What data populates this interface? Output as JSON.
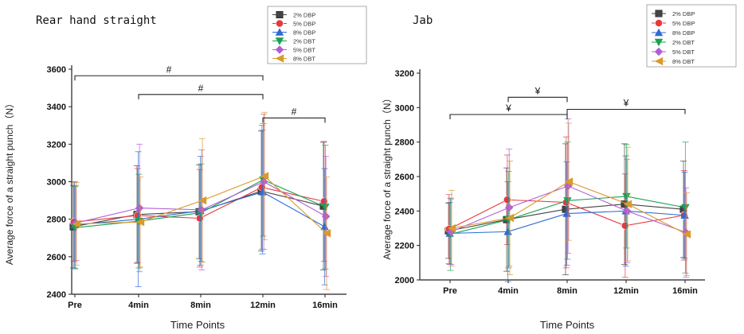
{
  "chart_data": [
    {
      "type": "line",
      "title": "Rear hand straight",
      "xlabel": "Time Points",
      "ylabel": "Average force of a straight punch（N）",
      "categories": [
        "Pre",
        "4min",
        "8min",
        "12min",
        "16min"
      ],
      "ylim": [
        2400,
        3600
      ],
      "yticks": [
        2400,
        2600,
        2800,
        3000,
        3200,
        3400,
        3600
      ],
      "series": [
        {
          "name": "2% DBP",
          "color": "#444444",
          "marker": "square",
          "values": [
            2760,
            2825,
            2840,
            2950,
            2870
          ],
          "errors": [
            220,
            260,
            250,
            320,
            340
          ]
        },
        {
          "name": "5% DBP",
          "color": "#e8383d",
          "marker": "circle",
          "values": [
            2785,
            2820,
            2805,
            2970,
            2895
          ],
          "errors": [
            210,
            250,
            260,
            330,
            320
          ]
        },
        {
          "name": "8% DBP",
          "color": "#2d6bd6",
          "marker": "triangle-up",
          "values": [
            2770,
            2800,
            2845,
            2945,
            2760
          ],
          "errors": [
            230,
            360,
            290,
            330,
            310
          ]
        },
        {
          "name": "2% DBT",
          "color": "#1aa150",
          "marker": "triangle-down",
          "values": [
            2755,
            2790,
            2835,
            3010,
            2865
          ],
          "errors": [
            220,
            250,
            260,
            300,
            330
          ]
        },
        {
          "name": "5% DBT",
          "color": "#b05ed6",
          "marker": "diamond",
          "values": [
            2780,
            2860,
            2850,
            3000,
            2815
          ],
          "errors": [
            200,
            340,
            320,
            360,
            320
          ]
        },
        {
          "name": "8% DBT",
          "color": "#d99a2b",
          "marker": "triangle-left",
          "values": [
            2775,
            2785,
            2900,
            3030,
            2725
          ],
          "errors": [
            220,
            240,
            330,
            340,
            300
          ]
        }
      ],
      "annotations": [
        {
          "label": "#",
          "from": "Pre",
          "to": "12min",
          "y": 3565
        },
        {
          "label": "#",
          "from": "4min",
          "to": "12min",
          "y": 3465
        },
        {
          "label": "#",
          "from": "12min",
          "to": "16min",
          "y": 3340
        }
      ]
    },
    {
      "type": "line",
      "title": "Jab",
      "xlabel": "Time Points",
      "ylabel": "Average force of a straight punch（N）",
      "categories": [
        "Pre",
        "4min",
        "8min",
        "12min",
        "16min"
      ],
      "ylim": [
        2000,
        3200
      ],
      "yticks": [
        2000,
        2200,
        2400,
        2600,
        2800,
        3000,
        3200
      ],
      "series": [
        {
          "name": "2% DBP",
          "color": "#444444",
          "marker": "square",
          "values": [
            2285,
            2350,
            2410,
            2440,
            2410
          ],
          "errors": [
            160,
            300,
            380,
            350,
            280
          ]
        },
        {
          "name": "5% DBP",
          "color": "#e8383d",
          "marker": "circle",
          "values": [
            2295,
            2465,
            2450,
            2315,
            2375
          ],
          "errors": [
            200,
            260,
            380,
            300,
            260
          ]
        },
        {
          "name": "8% DBP",
          "color": "#2d6bd6",
          "marker": "triangle-up",
          "values": [
            2270,
            2280,
            2385,
            2400,
            2375
          ],
          "errors": [
            180,
            290,
            300,
            320,
            250
          ]
        },
        {
          "name": "2% DBT",
          "color": "#1aa150",
          "marker": "triangle-down",
          "values": [
            2265,
            2350,
            2460,
            2485,
            2420
          ],
          "errors": [
            210,
            280,
            340,
            300,
            380
          ]
        },
        {
          "name": "5% DBT",
          "color": "#b05ed6",
          "marker": "diamond",
          "values": [
            2280,
            2420,
            2545,
            2400,
            2275
          ],
          "errors": [
            190,
            340,
            390,
            300,
            260
          ]
        },
        {
          "name": "8% DBT",
          "color": "#d99a2b",
          "marker": "triangle-left",
          "values": [
            2300,
            2360,
            2570,
            2440,
            2265
          ],
          "errors": [
            220,
            330,
            340,
            330,
            240
          ]
        }
      ],
      "annotations": [
        {
          "label": "¥",
          "from": "4min",
          "to": "8min",
          "y": 3060
        },
        {
          "label": "¥",
          "from": "8min",
          "to": "16min",
          "y": 2990
        },
        {
          "label": "¥",
          "from": "Pre",
          "to": "8min",
          "y": 2960
        }
      ]
    }
  ]
}
